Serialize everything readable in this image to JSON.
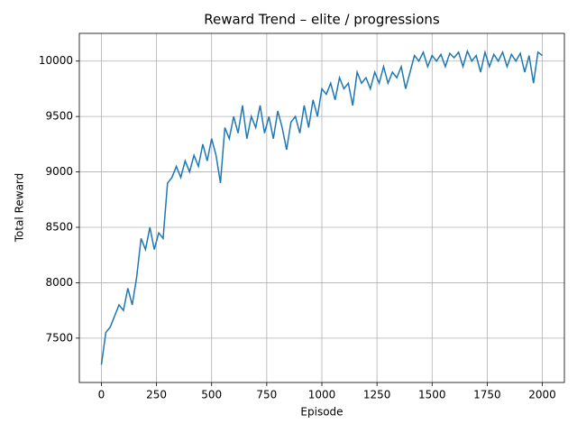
{
  "chart_data": {
    "type": "line",
    "title": "Reward Trend – elite / progressions",
    "xlabel": "Episode",
    "ylabel": "Total Reward",
    "x": [
      0,
      20,
      40,
      60,
      80,
      100,
      120,
      140,
      160,
      180,
      200,
      220,
      240,
      260,
      280,
      300,
      320,
      340,
      360,
      380,
      400,
      420,
      440,
      460,
      480,
      500,
      520,
      540,
      560,
      580,
      600,
      620,
      640,
      660,
      680,
      700,
      720,
      740,
      760,
      780,
      800,
      820,
      840,
      860,
      880,
      900,
      920,
      940,
      960,
      980,
      1000,
      1020,
      1040,
      1060,
      1080,
      1100,
      1120,
      1140,
      1160,
      1180,
      1200,
      1220,
      1240,
      1260,
      1280,
      1300,
      1320,
      1340,
      1360,
      1380,
      1400,
      1420,
      1440,
      1460,
      1480,
      1500,
      1520,
      1540,
      1560,
      1580,
      1600,
      1620,
      1640,
      1660,
      1680,
      1700,
      1720,
      1740,
      1760,
      1780,
      1800,
      1820,
      1840,
      1860,
      1880,
      1900,
      1920,
      1940,
      1960,
      1980,
      2000
    ],
    "series": [
      {
        "name": "Total Reward",
        "color": "#1f77b4",
        "values": [
          7260,
          7550,
          7600,
          7700,
          7800,
          7750,
          7950,
          7800,
          8050,
          8400,
          8300,
          8500,
          8300,
          8450,
          8400,
          8900,
          8950,
          9050,
          8950,
          9100,
          9000,
          9150,
          9050,
          9250,
          9100,
          9300,
          9150,
          8900,
          9400,
          9300,
          9500,
          9350,
          9600,
          9300,
          9500,
          9400,
          9600,
          9350,
          9500,
          9300,
          9550,
          9400,
          9200,
          9450,
          9500,
          9350,
          9600,
          9400,
          9650,
          9500,
          9750,
          9700,
          9800,
          9650,
          9850,
          9750,
          9800,
          9600,
          9900,
          9800,
          9850,
          9750,
          9900,
          9800,
          9950,
          9800,
          9900,
          9850,
          9950,
          9750,
          9900,
          10050,
          10000,
          10080,
          9950,
          10050,
          10000,
          10060,
          9950,
          10070,
          10030,
          10080,
          9950,
          10090,
          10000,
          10050,
          9900,
          10080,
          9950,
          10060,
          10000,
          10080,
          9950,
          10060,
          10000,
          10070,
          9900,
          10050,
          9800,
          10080,
          10050
        ]
      }
    ],
    "xlim": [
      -100,
      2100
    ],
    "ylim": [
      7100,
      10250
    ],
    "xticks": [
      0,
      250,
      500,
      750,
      1000,
      1250,
      1500,
      1750,
      2000
    ],
    "yticks": [
      7500,
      8000,
      8500,
      9000,
      9500,
      10000
    ],
    "grid": true
  }
}
